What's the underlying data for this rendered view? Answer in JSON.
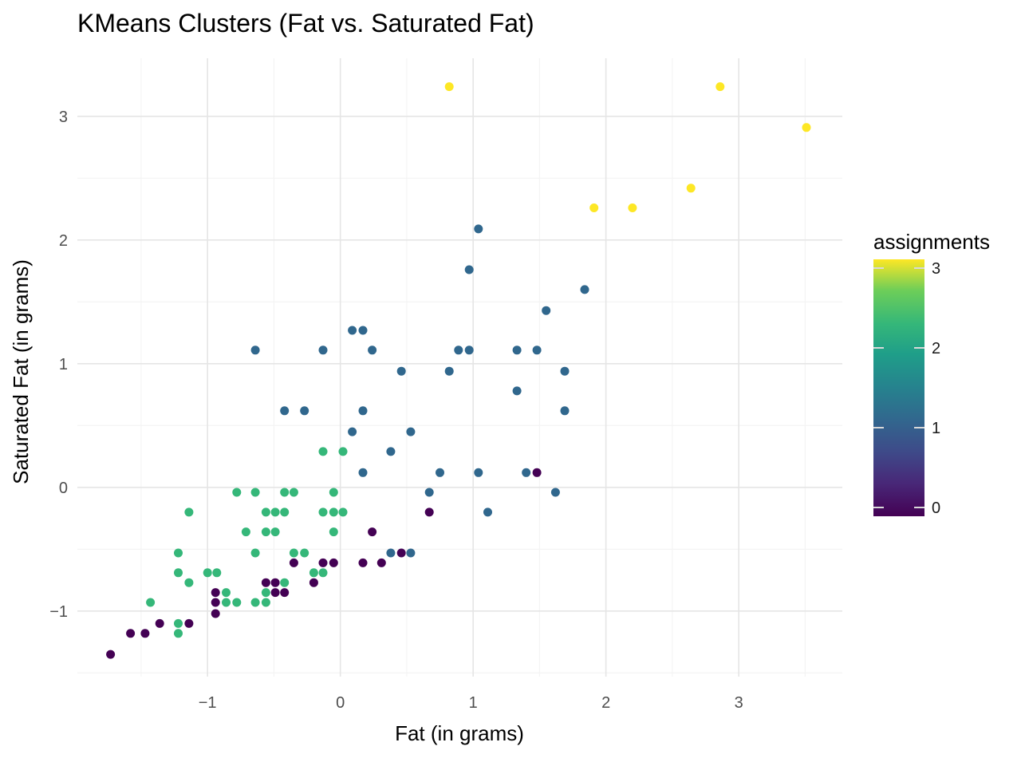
{
  "chart_data": {
    "type": "scatter",
    "title": "KMeans Clusters (Fat vs. Saturated Fat)",
    "xlabel": "Fat (in grams)",
    "ylabel": "Saturated Fat (in grams)",
    "xlim": [
      -1.98,
      3.78
    ],
    "ylim": [
      -1.53,
      3.47
    ],
    "x_ticks": [
      -1,
      0,
      1,
      2,
      3
    ],
    "x_tick_labels": [
      "−1",
      "0",
      "1",
      "2",
      "3"
    ],
    "y_ticks": [
      -1,
      0,
      1,
      2,
      3
    ],
    "y_tick_labels": [
      "−1",
      "0",
      "1",
      "2",
      "3"
    ],
    "grid": true,
    "legend": {
      "title": "assignments",
      "placement": "right",
      "type": "colorbar",
      "range": [
        0,
        3
      ],
      "ticks": [
        0,
        1,
        2,
        3
      ],
      "tick_labels": [
        "0",
        "1",
        "2",
        "3"
      ],
      "colors": [
        "#440154",
        "#3b528b",
        "#21908c",
        "#5dc863",
        "#fde725"
      ]
    },
    "cluster_colors": {
      "0": "#440154",
      "1": "#30678d",
      "2": "#35b779",
      "3": "#fde725"
    },
    "points": [
      {
        "x": -1.73,
        "y": -1.35,
        "c": 0
      },
      {
        "x": -1.58,
        "y": -1.18,
        "c": 0
      },
      {
        "x": -1.47,
        "y": -1.18,
        "c": 0
      },
      {
        "x": -1.36,
        "y": -1.1,
        "c": 0
      },
      {
        "x": -1.14,
        "y": -1.1,
        "c": 0
      },
      {
        "x": -0.94,
        "y": -0.85,
        "c": 0
      },
      {
        "x": -0.94,
        "y": -0.93,
        "c": 0
      },
      {
        "x": -0.94,
        "y": -1.02,
        "c": 0
      },
      {
        "x": -0.56,
        "y": -0.77,
        "c": 0
      },
      {
        "x": -0.49,
        "y": -0.77,
        "c": 0
      },
      {
        "x": -0.49,
        "y": -0.85,
        "c": 0
      },
      {
        "x": -0.42,
        "y": -0.85,
        "c": 0
      },
      {
        "x": -0.2,
        "y": -0.77,
        "c": 0
      },
      {
        "x": -0.35,
        "y": -0.61,
        "c": 0
      },
      {
        "x": -0.13,
        "y": -0.61,
        "c": 0
      },
      {
        "x": -0.05,
        "y": -0.61,
        "c": 0
      },
      {
        "x": 0.17,
        "y": -0.61,
        "c": 0
      },
      {
        "x": 0.24,
        "y": -0.36,
        "c": 0
      },
      {
        "x": 0.31,
        "y": -0.61,
        "c": 0
      },
      {
        "x": 0.46,
        "y": -0.53,
        "c": 0
      },
      {
        "x": 0.67,
        "y": -0.2,
        "c": 0
      },
      {
        "x": 1.48,
        "y": 0.12,
        "c": 0
      },
      {
        "x": -0.64,
        "y": 1.11,
        "c": 1
      },
      {
        "x": -0.13,
        "y": 1.11,
        "c": 1
      },
      {
        "x": 0.09,
        "y": 1.27,
        "c": 1
      },
      {
        "x": 0.17,
        "y": 1.27,
        "c": 1
      },
      {
        "x": 0.24,
        "y": 1.11,
        "c": 1
      },
      {
        "x": -0.42,
        "y": 0.62,
        "c": 1
      },
      {
        "x": -0.27,
        "y": 0.62,
        "c": 1
      },
      {
        "x": 0.09,
        "y": 0.45,
        "c": 1
      },
      {
        "x": 0.17,
        "y": 0.62,
        "c": 1
      },
      {
        "x": 0.17,
        "y": 0.12,
        "c": 1
      },
      {
        "x": 0.38,
        "y": 0.29,
        "c": 1
      },
      {
        "x": 0.46,
        "y": 0.94,
        "c": 1
      },
      {
        "x": 0.53,
        "y": 0.45,
        "c": 1
      },
      {
        "x": 0.67,
        "y": -0.04,
        "c": 1
      },
      {
        "x": 0.75,
        "y": 0.12,
        "c": 1
      },
      {
        "x": 0.82,
        "y": 0.94,
        "c": 1
      },
      {
        "x": 0.89,
        "y": 1.11,
        "c": 1
      },
      {
        "x": 0.97,
        "y": 1.11,
        "c": 1
      },
      {
        "x": 0.97,
        "y": 1.76,
        "c": 1
      },
      {
        "x": 1.04,
        "y": 2.09,
        "c": 1
      },
      {
        "x": 1.04,
        "y": 0.12,
        "c": 1
      },
      {
        "x": 1.11,
        "y": -0.2,
        "c": 1
      },
      {
        "x": 0.38,
        "y": -0.53,
        "c": 1
      },
      {
        "x": 0.53,
        "y": -0.53,
        "c": 1
      },
      {
        "x": 1.33,
        "y": 1.11,
        "c": 1
      },
      {
        "x": 1.33,
        "y": 0.78,
        "c": 1
      },
      {
        "x": 1.4,
        "y": 0.12,
        "c": 1
      },
      {
        "x": 1.48,
        "y": 1.11,
        "c": 1
      },
      {
        "x": 1.55,
        "y": 1.43,
        "c": 1
      },
      {
        "x": 1.62,
        "y": -0.04,
        "c": 1
      },
      {
        "x": 1.69,
        "y": 0.94,
        "c": 1
      },
      {
        "x": 1.69,
        "y": 0.62,
        "c": 1
      },
      {
        "x": 1.84,
        "y": 1.6,
        "c": 1
      },
      {
        "x": -1.43,
        "y": -0.93,
        "c": 2
      },
      {
        "x": -1.22,
        "y": -0.53,
        "c": 2
      },
      {
        "x": -1.22,
        "y": -0.69,
        "c": 2
      },
      {
        "x": -1.22,
        "y": -1.1,
        "c": 2
      },
      {
        "x": -1.22,
        "y": -1.18,
        "c": 2
      },
      {
        "x": -1.14,
        "y": -0.2,
        "c": 2
      },
      {
        "x": -1.14,
        "y": -0.77,
        "c": 2
      },
      {
        "x": -1.0,
        "y": -0.69,
        "c": 2
      },
      {
        "x": -0.93,
        "y": -0.69,
        "c": 2
      },
      {
        "x": -0.86,
        "y": -0.85,
        "c": 2
      },
      {
        "x": -0.86,
        "y": -0.93,
        "c": 2
      },
      {
        "x": -0.78,
        "y": -0.93,
        "c": 2
      },
      {
        "x": -0.78,
        "y": -0.04,
        "c": 2
      },
      {
        "x": -0.71,
        "y": -0.36,
        "c": 2
      },
      {
        "x": -0.64,
        "y": -0.04,
        "c": 2
      },
      {
        "x": -0.64,
        "y": -0.53,
        "c": 2
      },
      {
        "x": -0.64,
        "y": -0.93,
        "c": 2
      },
      {
        "x": -0.56,
        "y": -0.2,
        "c": 2
      },
      {
        "x": -0.56,
        "y": -0.36,
        "c": 2
      },
      {
        "x": -0.56,
        "y": -0.85,
        "c": 2
      },
      {
        "x": -0.56,
        "y": -0.93,
        "c": 2
      },
      {
        "x": -0.49,
        "y": -0.2,
        "c": 2
      },
      {
        "x": -0.49,
        "y": -0.36,
        "c": 2
      },
      {
        "x": -0.42,
        "y": -0.04,
        "c": 2
      },
      {
        "x": -0.42,
        "y": -0.2,
        "c": 2
      },
      {
        "x": -0.42,
        "y": -0.77,
        "c": 2
      },
      {
        "x": -0.35,
        "y": -0.04,
        "c": 2
      },
      {
        "x": -0.35,
        "y": -0.53,
        "c": 2
      },
      {
        "x": -0.27,
        "y": -0.53,
        "c": 2
      },
      {
        "x": -0.2,
        "y": -0.69,
        "c": 2
      },
      {
        "x": -0.13,
        "y": -0.69,
        "c": 2
      },
      {
        "x": -0.13,
        "y": -0.2,
        "c": 2
      },
      {
        "x": -0.13,
        "y": 0.29,
        "c": 2
      },
      {
        "x": -0.05,
        "y": -0.04,
        "c": 2
      },
      {
        "x": -0.05,
        "y": -0.2,
        "c": 2
      },
      {
        "x": -0.05,
        "y": -0.36,
        "c": 2
      },
      {
        "x": 0.02,
        "y": -0.2,
        "c": 2
      },
      {
        "x": 0.02,
        "y": 0.29,
        "c": 2
      },
      {
        "x": 0.82,
        "y": 3.24,
        "c": 3
      },
      {
        "x": 1.91,
        "y": 2.26,
        "c": 3
      },
      {
        "x": 2.2,
        "y": 2.26,
        "c": 3
      },
      {
        "x": 2.64,
        "y": 2.42,
        "c": 3
      },
      {
        "x": 2.86,
        "y": 3.24,
        "c": 3
      },
      {
        "x": 3.51,
        "y": 2.91,
        "c": 3
      }
    ]
  }
}
